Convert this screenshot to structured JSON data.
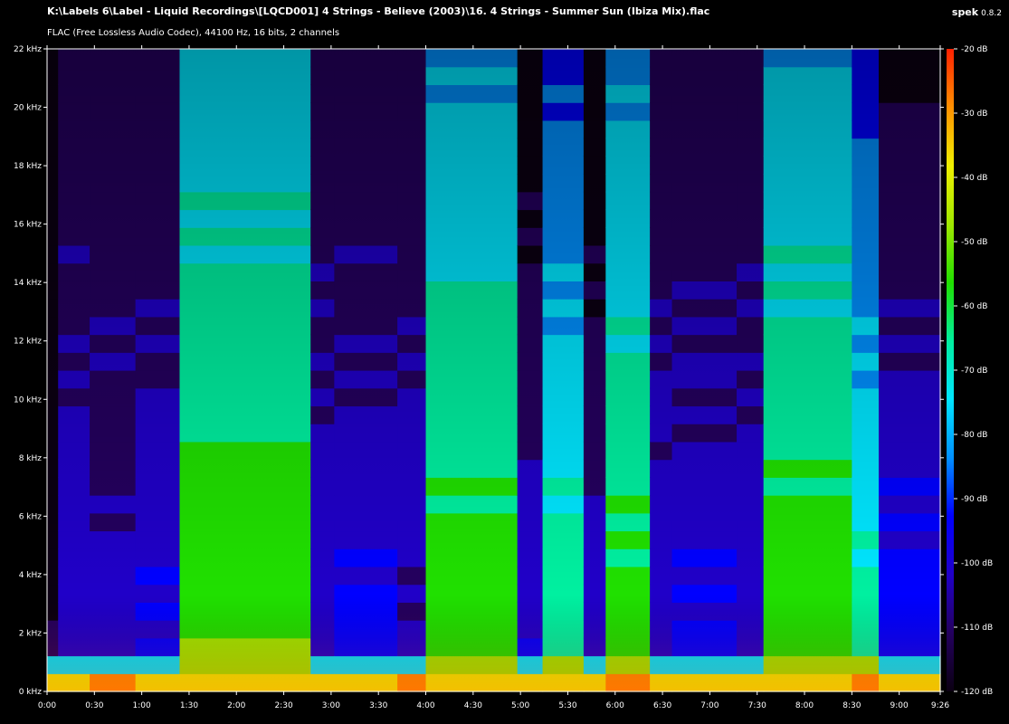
{
  "header": {
    "file_path": "K:\\Labels 6\\Label - Liquid Recordings\\[LQCD001] 4 Strings - Believe (2003)\\16. 4 Strings - Summer Sun (Ibiza Mix).flac",
    "audio_info": "FLAC (Free Lossless Audio Codec), 44100 Hz, 16 bits, 2 channels",
    "app_name": "spek",
    "app_version": "0.8.2"
  },
  "chart_data": {
    "type": "heatmap",
    "title": "",
    "xlabel": "",
    "ylabel": "",
    "x_unit": "time (m:ss)",
    "xlim_seconds": [
      0,
      566
    ],
    "x_ticks": [
      {
        "label": "0:00",
        "t": 0
      },
      {
        "label": "0:30",
        "t": 30
      },
      {
        "label": "1:00",
        "t": 60
      },
      {
        "label": "1:30",
        "t": 90
      },
      {
        "label": "2:00",
        "t": 120
      },
      {
        "label": "2:30",
        "t": 150
      },
      {
        "label": "3:00",
        "t": 180
      },
      {
        "label": "3:30",
        "t": 210
      },
      {
        "label": "4:00",
        "t": 240
      },
      {
        "label": "4:30",
        "t": 270
      },
      {
        "label": "5:00",
        "t": 300
      },
      {
        "label": "5:30",
        "t": 330
      },
      {
        "label": "6:00",
        "t": 360
      },
      {
        "label": "6:30",
        "t": 390
      },
      {
        "label": "7:00",
        "t": 420
      },
      {
        "label": "7:30",
        "t": 450
      },
      {
        "label": "8:00",
        "t": 480
      },
      {
        "label": "8:30",
        "t": 510
      },
      {
        "label": "9:00",
        "t": 540
      },
      {
        "label": "9:26",
        "t": 566
      }
    ],
    "ylim_khz": [
      0,
      22
    ],
    "y_ticks": [
      {
        "label": "0 kHz",
        "f": 0
      },
      {
        "label": "2 kHz",
        "f": 2
      },
      {
        "label": "4 kHz",
        "f": 4
      },
      {
        "label": "6 kHz",
        "f": 6
      },
      {
        "label": "8 kHz",
        "f": 8
      },
      {
        "label": "10 kHz",
        "f": 10
      },
      {
        "label": "12 kHz",
        "f": 12
      },
      {
        "label": "14 kHz",
        "f": 14
      },
      {
        "label": "16 kHz",
        "f": 16
      },
      {
        "label": "18 kHz",
        "f": 18
      },
      {
        "label": "20 kHz",
        "f": 20
      },
      {
        "label": "22 kHz",
        "f": 22
      }
    ],
    "colorbar_ticks": [
      {
        "label": "-20 dB",
        "db": -20
      },
      {
        "label": "-30 dB",
        "db": -30
      },
      {
        "label": "-40 dB",
        "db": -40
      },
      {
        "label": "-50 dB",
        "db": -50
      },
      {
        "label": "-60 dB",
        "db": -60
      },
      {
        "label": "-70 dB",
        "db": -70
      },
      {
        "label": "-80 dB",
        "db": -80
      },
      {
        "label": "-90 dB",
        "db": -90
      },
      {
        "label": "-100 dB",
        "db": -100
      },
      {
        "label": "-110 dB",
        "db": -110
      },
      {
        "label": "-120 dB",
        "db": -120
      }
    ],
    "colorbar_range_db": [
      -120,
      -20
    ],
    "colormap": [
      "#0b0012",
      "#24005e",
      "#2000c8",
      "#0000ff",
      "#0090ff",
      "#00e6ff",
      "#00f0a0",
      "#20e000",
      "#a0e800",
      "#f0f000",
      "#ff9000",
      "#ff2000"
    ],
    "segments": [
      {
        "t0": 0,
        "t1": 7,
        "level": 0.08,
        "cutoff_khz": 22
      },
      {
        "t0": 7,
        "t1": 27,
        "level": 0.18,
        "cutoff_khz": 3
      },
      {
        "t0": 27,
        "t1": 56,
        "level": 0.22,
        "cutoff_khz": 11
      },
      {
        "t0": 56,
        "t1": 84,
        "level": 0.27,
        "cutoff_khz": 11
      },
      {
        "t0": 84,
        "t1": 167,
        "level": 0.7,
        "cutoff_khz": 22
      },
      {
        "t0": 167,
        "t1": 182,
        "level": 0.16,
        "cutoff_khz": 1
      },
      {
        "t0": 182,
        "t1": 222,
        "level": 0.28,
        "cutoff_khz": 6
      },
      {
        "t0": 222,
        "t1": 240,
        "level": 0.18,
        "cutoff_khz": 4
      },
      {
        "t0": 240,
        "t1": 298,
        "level": 0.68,
        "cutoff_khz": 22
      },
      {
        "t0": 298,
        "t1": 314,
        "level": 0.24,
        "cutoff_khz": 22
      },
      {
        "t0": 314,
        "t1": 340,
        "level": 0.58,
        "cutoff_khz": 22
      },
      {
        "t0": 340,
        "t1": 354,
        "level": 0.22,
        "cutoff_khz": 22
      },
      {
        "t0": 354,
        "t1": 382,
        "level": 0.66,
        "cutoff_khz": 22
      },
      {
        "t0": 382,
        "t1": 396,
        "level": 0.16,
        "cutoff_khz": 1
      },
      {
        "t0": 396,
        "t1": 437,
        "level": 0.28,
        "cutoff_khz": 6
      },
      {
        "t0": 437,
        "t1": 454,
        "level": 0.2,
        "cutoff_khz": 4
      },
      {
        "t0": 454,
        "t1": 510,
        "level": 0.68,
        "cutoff_khz": 22
      },
      {
        "t0": 510,
        "t1": 527,
        "level": 0.56,
        "cutoff_khz": 22
      },
      {
        "t0": 527,
        "t1": 566,
        "level": 0.3,
        "cutoff_khz": 22
      }
    ]
  }
}
